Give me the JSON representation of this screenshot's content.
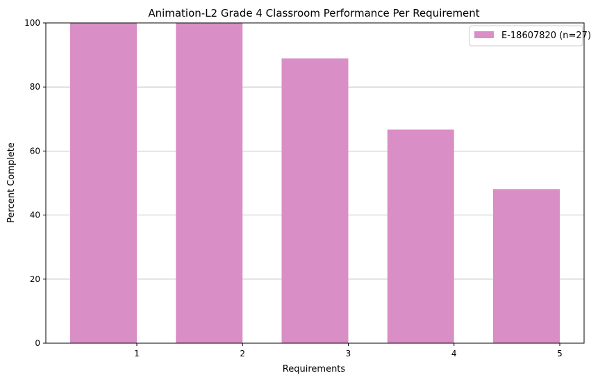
{
  "chart_data": {
    "type": "bar",
    "title": "Animation-L2 Grade 4 Classroom Performance Per Requirement",
    "xlabel": "Requirements",
    "ylabel": "Percent Complete",
    "categories": [
      "1",
      "2",
      "3",
      "4",
      "5"
    ],
    "series": [
      {
        "name": "E-18607820 (n=27)",
        "values": [
          100,
          100,
          88.9,
          66.7,
          48.1
        ],
        "color": "#d98fc6"
      }
    ],
    "ylim": [
      0,
      100
    ],
    "yticks": [
      0,
      20,
      40,
      60,
      80,
      100
    ],
    "grid": "horizontal",
    "legend_position": "top-right",
    "bar_alignment": "bars end at the category tick"
  }
}
